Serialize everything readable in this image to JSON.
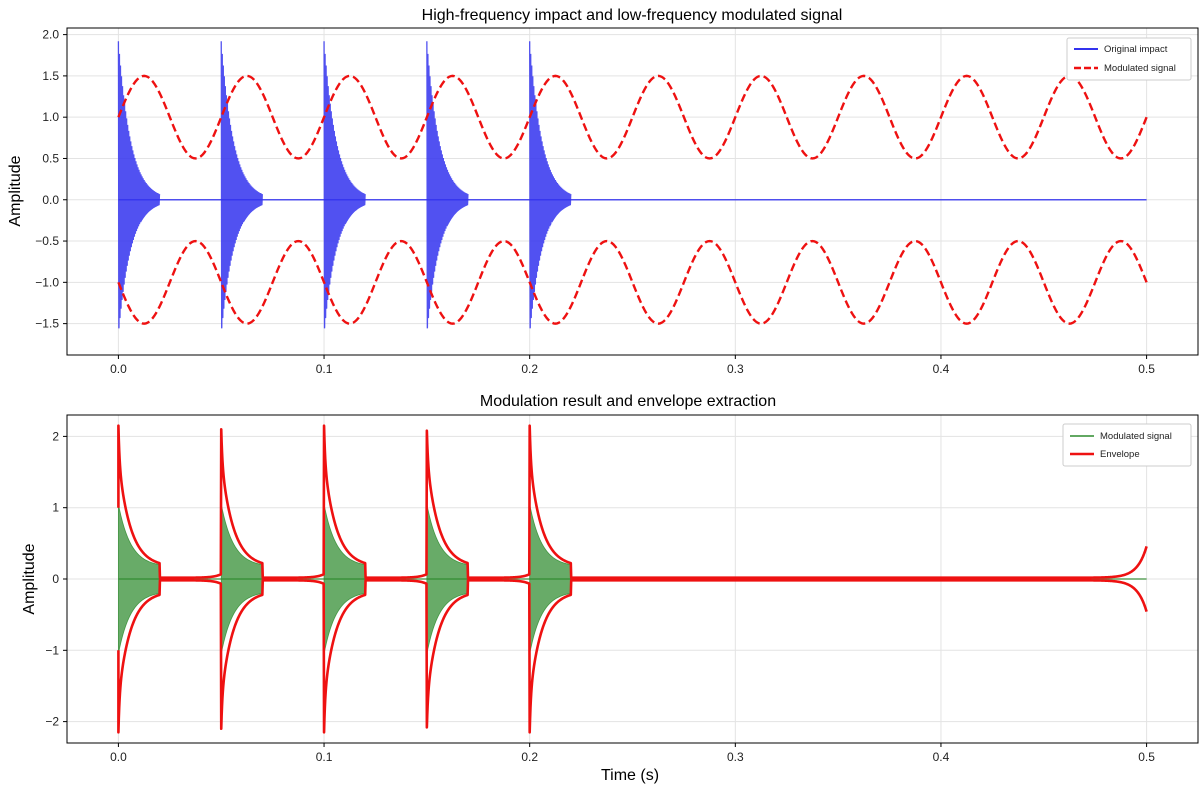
{
  "figure": {
    "xlabel_shared": "Time (s)"
  },
  "chart_data": [
    {
      "type": "line",
      "title": "High-frequency impact and low-frequency modulated signal",
      "xlabel": "",
      "ylabel": "Amplitude",
      "xlim": [
        -0.025,
        0.525
      ],
      "ylim": [
        -1.88,
        2.08
      ],
      "xticks": [
        0.0,
        0.1,
        0.2,
        0.3,
        0.4,
        0.5
      ],
      "xtick_labels": [
        "0.0",
        "0.1",
        "0.2",
        "0.3",
        "0.4",
        "0.5"
      ],
      "yticks": [
        2.0,
        1.5,
        1.0,
        0.5,
        0.0,
        -0.5,
        -1.0,
        -1.5
      ],
      "ytick_labels": [
        "2.0",
        "1.5",
        "1.0",
        "0.5",
        "0.0",
        "−0.5",
        "−1.0",
        "−1.5"
      ],
      "grid": true,
      "legend_position": "top-right",
      "impacts": {
        "start_times": [
          0.0,
          0.05,
          0.1,
          0.15,
          0.2
        ],
        "duration": 0.02,
        "peak_max": 1.92,
        "peak_min": -1.72,
        "decay_time_constant": 0.006,
        "display_oscillation_frequency_hz": 2000,
        "baseline": 0.0
      },
      "carrier": {
        "offset": 1.0,
        "amplitude": 0.5,
        "frequency_hz": 20,
        "x_range": [
          0.0,
          0.5
        ],
        "mirrored": true
      },
      "series": [
        {
          "name": "Original impact",
          "color": "#3333ee",
          "style": "solid"
        },
        {
          "name": "Modulated signal",
          "color": "#ee1111",
          "style": "dashed"
        }
      ]
    },
    {
      "type": "area",
      "title": "Modulation result and envelope extraction",
      "xlabel": "Time (s)",
      "ylabel": "Amplitude",
      "xlim": [
        -0.025,
        0.525
      ],
      "ylim": [
        -2.3,
        2.3
      ],
      "xticks": [
        0.0,
        0.1,
        0.2,
        0.3,
        0.4,
        0.5
      ],
      "xtick_labels": [
        "0.0",
        "0.1",
        "0.2",
        "0.3",
        "0.4",
        "0.5"
      ],
      "yticks": [
        2,
        1,
        0,
        -1,
        -2
      ],
      "ytick_labels": [
        "2",
        "1",
        "0",
        "−1",
        "−2"
      ],
      "grid": true,
      "legend_position": "top-right",
      "pulses": {
        "start_times": [
          0.0,
          0.05,
          0.1,
          0.15,
          0.2
        ],
        "peak_values": [
          2.05,
          2.0,
          2.05,
          1.98,
          2.05
        ],
        "fill_start_value": 1.0,
        "decay_time_constant": 0.006,
        "duration": 0.02,
        "end_value": 0.17,
        "lead_in_value": 0.05
      },
      "end_spike": {
        "x": 0.5,
        "value": 0.46
      },
      "series": [
        {
          "name": "Modulated signal",
          "color": "#2e8b2e",
          "style": "solid"
        },
        {
          "name": "Envelope",
          "color": "#ee1111",
          "style": "solid"
        }
      ]
    }
  ]
}
